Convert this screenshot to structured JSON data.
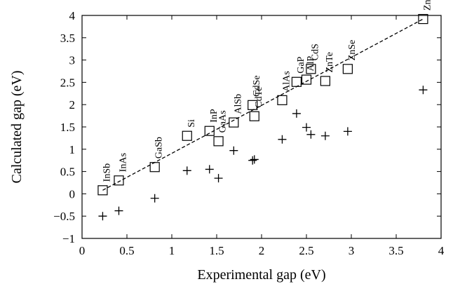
{
  "chart_data": {
    "type": "scatter",
    "xlabel": "Experimental gap (eV)",
    "ylabel": "Calculated gap (eV)",
    "xlim": [
      0,
      4
    ],
    "ylim": [
      -1,
      4
    ],
    "x_ticks": [
      0,
      0.5,
      1,
      1.5,
      2,
      2.5,
      3,
      3.5,
      4
    ],
    "x_tick_labels": [
      "0",
      "0.5",
      "1",
      "1.5",
      "2",
      "2.5",
      "3",
      "3.5",
      "4"
    ],
    "y_ticks": [
      -1,
      -0.5,
      0,
      0.5,
      1,
      1.5,
      2,
      2.5,
      3,
      3.5,
      4
    ],
    "y_tick_labels": [
      "−1",
      "−0.5",
      "0",
      "0.5",
      "1",
      "1.5",
      "2",
      "2.5",
      "3",
      "3.5",
      "4"
    ],
    "grid": false,
    "fit_line": {
      "style": "dashed",
      "from": [
        0.23,
        0.08
      ],
      "to": [
        3.8,
        3.92
      ]
    },
    "materials": [
      {
        "name": "InSb",
        "exp": 0.23,
        "square": 0.08,
        "plus": -0.5
      },
      {
        "name": "InAs",
        "exp": 0.41,
        "square": 0.3,
        "plus": -0.38
      },
      {
        "name": "GaSb",
        "exp": 0.81,
        "square": 0.6,
        "plus": -0.1
      },
      {
        "name": "Si",
        "exp": 1.17,
        "square": 1.3,
        "plus": 0.52
      },
      {
        "name": "InP",
        "exp": 1.42,
        "square": 1.41,
        "plus": 0.55
      },
      {
        "name": "GaAs",
        "exp": 1.52,
        "square": 1.18,
        "plus": 0.35
      },
      {
        "name": "AlSb",
        "exp": 1.69,
        "square": 1.6,
        "plus": 0.97
      },
      {
        "name": "CdSe",
        "exp": 1.9,
        "square": 1.99,
        "plus": 0.75
      },
      {
        "name": "CdTe",
        "exp": 1.92,
        "square": 1.74,
        "plus": 0.77
      },
      {
        "name": "AlAs",
        "exp": 2.23,
        "square": 2.1,
        "plus": 1.22
      },
      {
        "name": "GaP",
        "exp": 2.39,
        "square": 2.51,
        "plus": 1.8
      },
      {
        "name": "AlP",
        "exp": 2.5,
        "square": 2.56,
        "plus": 1.49
      },
      {
        "name": "CdS",
        "exp": 2.55,
        "square": 2.8,
        "plus": 1.33
      },
      {
        "name": "ZnTe",
        "exp": 2.71,
        "square": 2.53,
        "plus": 1.3
      },
      {
        "name": "ZnSe",
        "exp": 2.96,
        "square": 2.8,
        "plus": 1.4
      },
      {
        "name": "ZnS",
        "exp": 3.8,
        "square": 3.92,
        "plus": 2.33
      }
    ]
  }
}
